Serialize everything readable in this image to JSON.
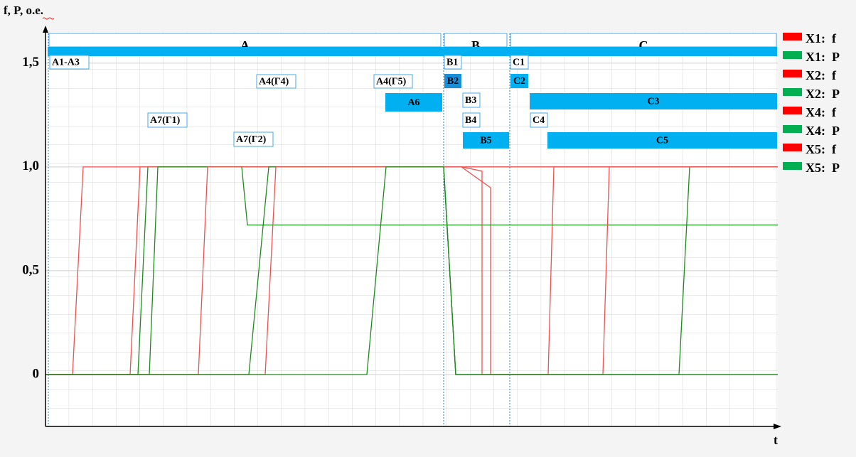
{
  "chart_data": {
    "type": "line",
    "ylabel": "f, P, o.e.",
    "xlabel": "t",
    "xlim": [
      0,
      1030
    ],
    "ylim": [
      -0.25,
      1.65
    ],
    "yticks": [
      0,
      {
        "value": 0.5,
        "label": "0,5"
      },
      {
        "value": 1.0,
        "label": "1,0"
      },
      {
        "value": 1.5,
        "label": "1,5"
      }
    ],
    "grid": true,
    "legend": "right",
    "series": [
      {
        "name": "X1:  f",
        "color": "#ff0000",
        "line_color": "#f05050",
        "x": [
          0,
          38,
          53,
          1030
        ],
        "values": [
          0,
          0,
          1.0,
          1.0
        ]
      },
      {
        "name": "X1:  P",
        "color": "#00b050",
        "line_color": "#1f8a1f",
        "x": [
          0,
          130,
          144,
          560,
          577,
          891,
          906,
          1030
        ],
        "values": [
          0,
          0,
          1.0,
          1.0,
          0,
          0,
          1.0,
          1.0
        ]
      },
      {
        "name": "X2:  f",
        "color": "#ff0000",
        "line_color": "#f05050",
        "x": [
          0,
          119,
          133,
          585,
          626,
          626,
          707,
          715,
          1030
        ],
        "values": [
          0,
          0,
          1.0,
          1.0,
          0.9,
          0,
          0,
          1.0,
          1.0
        ]
      },
      {
        "name": "X2:  P",
        "color": "#00b050",
        "line_color": "#1f8a1f",
        "x": [
          0,
          146,
          158,
          276,
          284,
          1030
        ],
        "values": [
          0,
          0,
          1.0,
          1.0,
          0.72,
          0.72
        ]
      },
      {
        "name": "X4:  f",
        "color": "#ff0000",
        "line_color": "#f05050",
        "x": [
          0,
          215,
          228,
          585,
          614,
          614,
          784,
          793,
          1030
        ],
        "values": [
          0,
          0,
          1.0,
          1.0,
          0.98,
          0,
          0,
          1.0,
          1.0
        ]
      },
      {
        "name": "X4:  P",
        "color": "#00b050",
        "line_color": "#1f8a1f",
        "x": [
          0,
          286,
          314,
          560,
          577,
          1030
        ],
        "values": [
          0,
          0,
          1.0,
          1.0,
          0,
          0
        ]
      },
      {
        "name": "X5:  f",
        "color": "#ff0000",
        "line_color": "#f05050",
        "x": [
          0,
          309,
          324,
          1030
        ],
        "values": [
          0,
          0,
          1.0,
          1.0
        ]
      },
      {
        "name": "X5:  P",
        "color": "#00b050",
        "line_color": "#1f8a1f",
        "x": [
          0,
          452,
          479,
          560,
          577,
          1030
        ],
        "values": [
          0,
          0,
          1.0,
          1.0,
          0,
          0
        ]
      }
    ],
    "sections": [
      "A",
      "B",
      "C"
    ],
    "annotations": [
      "A1-A3",
      "B1",
      "C1",
      "A4(Г4)",
      "A4(Г5)",
      "B2",
      "C2",
      "A6",
      "B3",
      "C3",
      "A7(Г1)",
      "B4",
      "C4",
      "A7(Г2)",
      "B5",
      "C5"
    ]
  }
}
